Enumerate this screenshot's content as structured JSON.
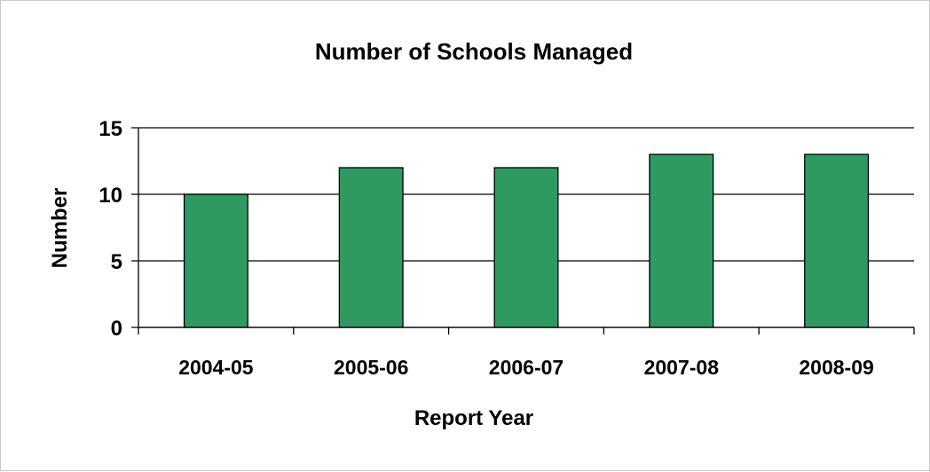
{
  "chart_data": {
    "type": "bar",
    "title": "Number of Schools Managed",
    "xlabel": "Report Year",
    "ylabel": "Number",
    "categories": [
      "2004-05",
      "2005-06",
      "2006-07",
      "2007-08",
      "2008-09"
    ],
    "values": [
      10,
      12,
      12,
      13,
      13
    ],
    "ylim": [
      0,
      15
    ],
    "yticks": [
      "0",
      "5",
      "10",
      "15"
    ],
    "grid": true,
    "legend": "none",
    "bar_color": "#2e9a62"
  }
}
